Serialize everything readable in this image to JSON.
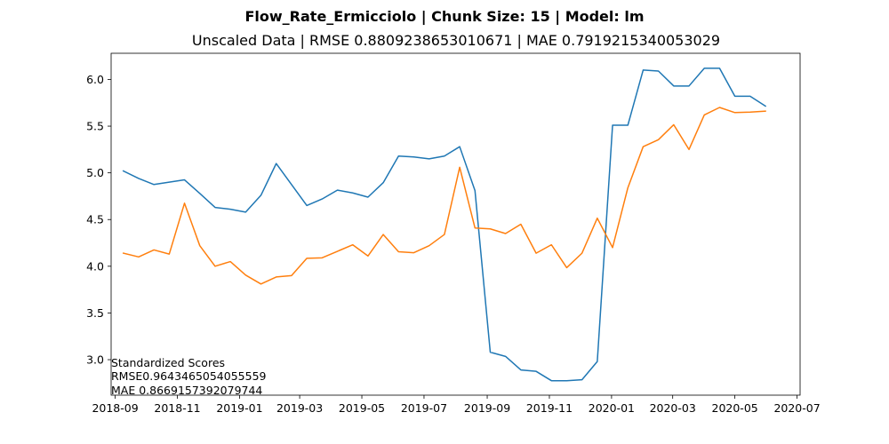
{
  "chart_data": {
    "type": "line",
    "title": "Flow_Rate_Ermicciolo | Chunk Size: 15 | Model: lm",
    "subtitle": "Unscaled Data | RMSE 0.8809238653010671 | MAE 0.7919215340053029",
    "xlabel": "",
    "ylabel": "",
    "xlim": [
      "2018-08-28",
      "2020-07-04"
    ],
    "ylim": [
      2.62,
      6.28
    ],
    "grid": false,
    "x_ticks": [
      "2018-09",
      "2018-11",
      "2019-01",
      "2019-03",
      "2019-05",
      "2019-07",
      "2019-09",
      "2019-11",
      "2020-01",
      "2020-03",
      "2020-05",
      "2020-07"
    ],
    "y_ticks": [
      3.0,
      3.5,
      4.0,
      4.5,
      5.0,
      5.5,
      6.0
    ],
    "y_tick_labels": [
      "3.0",
      "3.5",
      "4.0",
      "4.5",
      "5.0",
      "5.5",
      "6.0"
    ],
    "annotation_lines": [
      "Standardized Scores",
      "RMSE0.9643465054055559",
      "MAE 0.8669157392079744"
    ],
    "series": [
      {
        "color": "#1f77b4",
        "x": [
          "2018-09-09",
          "2018-09-24",
          "2018-10-09",
          "2018-10-24",
          "2018-11-08",
          "2018-11-23",
          "2018-12-08",
          "2018-12-23",
          "2019-01-07",
          "2019-01-22",
          "2019-02-06",
          "2019-02-21",
          "2019-03-08",
          "2019-03-23",
          "2019-04-07",
          "2019-04-22",
          "2019-05-07",
          "2019-05-22",
          "2019-06-06",
          "2019-06-21",
          "2019-07-06",
          "2019-07-21",
          "2019-08-05",
          "2019-08-20",
          "2019-09-04",
          "2019-09-19",
          "2019-10-04",
          "2019-10-19",
          "2019-11-03",
          "2019-11-18",
          "2019-12-03",
          "2019-12-18",
          "2020-01-02",
          "2020-01-17",
          "2020-02-01",
          "2020-02-16",
          "2020-03-02",
          "2020-03-17",
          "2020-04-01",
          "2020-04-16",
          "2020-05-01",
          "2020-05-16",
          "2020-05-31"
        ],
        "y": [
          5.02,
          4.94,
          4.875,
          4.9,
          4.925,
          4.78,
          4.63,
          4.61,
          4.58,
          4.76,
          5.1,
          4.875,
          4.65,
          4.72,
          4.815,
          4.785,
          4.74,
          4.895,
          5.18,
          5.17,
          5.15,
          5.18,
          5.28,
          4.81,
          3.08,
          3.035,
          2.89,
          2.875,
          2.775,
          2.775,
          2.785,
          2.98,
          5.51,
          5.51,
          6.1,
          6.09,
          5.93,
          5.93,
          6.12,
          6.12,
          5.82,
          5.82,
          5.715
        ]
      },
      {
        "color": "#ff7f0e",
        "x": [
          "2018-09-09",
          "2018-09-24",
          "2018-10-09",
          "2018-10-24",
          "2018-11-08",
          "2018-11-23",
          "2018-12-08",
          "2018-12-23",
          "2019-01-07",
          "2019-01-22",
          "2019-02-06",
          "2019-02-21",
          "2019-03-08",
          "2019-03-23",
          "2019-04-07",
          "2019-04-22",
          "2019-05-07",
          "2019-05-22",
          "2019-06-06",
          "2019-06-21",
          "2019-07-06",
          "2019-07-21",
          "2019-08-05",
          "2019-08-20",
          "2019-09-04",
          "2019-09-19",
          "2019-10-04",
          "2019-10-19",
          "2019-11-03",
          "2019-11-18",
          "2019-12-03",
          "2019-12-18",
          "2020-01-02",
          "2020-01-17",
          "2020-02-01",
          "2020-02-16",
          "2020-03-02",
          "2020-03-17",
          "2020-04-01",
          "2020-04-16",
          "2020-05-01",
          "2020-05-16",
          "2020-05-31"
        ],
        "y": [
          4.14,
          4.1,
          4.175,
          4.13,
          4.675,
          4.22,
          4.0,
          4.05,
          3.905,
          3.81,
          3.885,
          3.9,
          4.085,
          4.09,
          4.16,
          4.23,
          4.11,
          4.34,
          4.155,
          4.145,
          4.22,
          4.34,
          5.06,
          4.41,
          4.4,
          4.35,
          4.45,
          4.14,
          4.23,
          3.985,
          4.14,
          4.515,
          4.2,
          4.84,
          5.28,
          5.355,
          5.515,
          5.25,
          5.62,
          5.7,
          5.645,
          5.65,
          5.66
        ]
      }
    ]
  }
}
